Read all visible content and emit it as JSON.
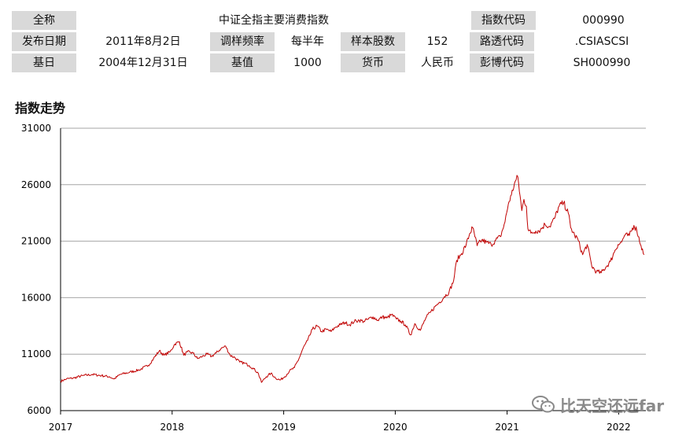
{
  "info": {
    "full_name_label": "全称",
    "full_name": "中证全指主要消费指数",
    "index_code_label": "指数代码",
    "index_code": "000990",
    "release_date_label": "发布日期",
    "release_date": "2011年8月2日",
    "rebalance_label": "调样频率",
    "rebalance": "每半年",
    "sample_count_label": "样本股数",
    "sample_count": "152",
    "reuters_code_label": "路透代码",
    "reuters_code": ".CSIASCSI",
    "base_date_label": "基日",
    "base_date": "2004年12月31日",
    "base_value_label": "基值",
    "base_value": "1000",
    "currency_label": "货币",
    "currency": "人民币",
    "bloomberg_code_label": "彭博代码",
    "bloomberg_code": "SH000990"
  },
  "section_title": "指数走势",
  "watermark": {
    "text": "比天空还远far",
    "icon": "wechat-icon"
  },
  "chart_data": {
    "type": "line",
    "title": "",
    "xlabel": "",
    "ylabel": "",
    "line_color": "#c00000",
    "grid": "horizontal",
    "ylim": [
      6000,
      31000
    ],
    "yticks": [
      6000,
      11000,
      16000,
      21000,
      26000,
      31000
    ],
    "xlim": [
      "2017-01-01",
      "2022-03-31"
    ],
    "xticks": [
      {
        "date": "2017-01-01",
        "label": "2017"
      },
      {
        "date": "2018-01-01",
        "label": "2018"
      },
      {
        "date": "2019-01-01",
        "label": "2019"
      },
      {
        "date": "2020-01-01",
        "label": "2020"
      },
      {
        "date": "2021-01-01",
        "label": "2021"
      },
      {
        "date": "2022-01-01",
        "label": "2022"
      }
    ],
    "series": [
      {
        "x": [
          "2017-01-01",
          "2017-01-20",
          "2017-02-15",
          "2017-03-15",
          "2017-04-15",
          "2017-05-15",
          "2017-06-10",
          "2017-06-25",
          "2017-07-15",
          "2017-08-15",
          "2017-09-15",
          "2017-10-15",
          "2017-11-01",
          "2017-11-20",
          "2017-12-05",
          "2017-12-25",
          "2018-01-10",
          "2018-01-25",
          "2018-02-08",
          "2018-02-20",
          "2018-03-10",
          "2018-03-25",
          "2018-04-10",
          "2018-04-25",
          "2018-05-10",
          "2018-05-25",
          "2018-06-10",
          "2018-06-25",
          "2018-07-10",
          "2018-07-25",
          "2018-08-10",
          "2018-08-25",
          "2018-09-10",
          "2018-09-25",
          "2018-10-10",
          "2018-10-20",
          "2018-11-05",
          "2018-11-20",
          "2018-12-05",
          "2018-12-20",
          "2019-01-04",
          "2019-01-20",
          "2019-02-05",
          "2019-02-20",
          "2019-03-05",
          "2019-03-20",
          "2019-04-05",
          "2019-04-20",
          "2019-05-05",
          "2019-05-20",
          "2019-06-05",
          "2019-06-20",
          "2019-07-05",
          "2019-07-20",
          "2019-08-05",
          "2019-08-20",
          "2019-09-05",
          "2019-09-20",
          "2019-10-05",
          "2019-10-20",
          "2019-11-05",
          "2019-11-20",
          "2019-12-05",
          "2019-12-20",
          "2020-01-05",
          "2020-01-20",
          "2020-02-03",
          "2020-02-20",
          "2020-03-05",
          "2020-03-23",
          "2020-04-10",
          "2020-04-25",
          "2020-05-10",
          "2020-05-25",
          "2020-06-10",
          "2020-06-25",
          "2020-07-10",
          "2020-07-20",
          "2020-08-05",
          "2020-08-20",
          "2020-09-01",
          "2020-09-10",
          "2020-09-25",
          "2020-10-10",
          "2020-10-25",
          "2020-11-10",
          "2020-11-25",
          "2020-12-10",
          "2020-12-25",
          "2021-01-05",
          "2021-01-15",
          "2021-01-25",
          "2021-02-05",
          "2021-02-18",
          "2021-02-25",
          "2021-03-05",
          "2021-03-10",
          "2021-03-20",
          "2021-04-05",
          "2021-04-20",
          "2021-05-05",
          "2021-05-20",
          "2021-06-05",
          "2021-06-20",
          "2021-07-05",
          "2021-07-20",
          "2021-07-28",
          "2021-08-10",
          "2021-08-20",
          "2021-09-05",
          "2021-09-20",
          "2021-10-05",
          "2021-10-20",
          "2021-11-05",
          "2021-11-20",
          "2021-12-05",
          "2021-12-20",
          "2021-12-30",
          "2022-01-10",
          "2022-01-20",
          "2022-02-05",
          "2022-02-20",
          "2022-03-01",
          "2022-03-15",
          "2022-03-25"
        ],
        "values": [
          8600,
          8800,
          8900,
          9100,
          9200,
          9100,
          9000,
          8800,
          9200,
          9400,
          9600,
          10000,
          10600,
          11300,
          10900,
          11200,
          11900,
          12100,
          10900,
          11200,
          11100,
          10600,
          10800,
          11000,
          10800,
          11100,
          11500,
          11700,
          10900,
          10700,
          10300,
          10200,
          10000,
          9700,
          9300,
          8500,
          9000,
          9300,
          8900,
          8700,
          9000,
          9500,
          9800,
          10600,
          11500,
          12200,
          13200,
          13500,
          13000,
          13200,
          13000,
          13400,
          13600,
          13800,
          13600,
          13900,
          14000,
          13900,
          14100,
          14300,
          14000,
          14300,
          14200,
          14500,
          14100,
          13900,
          13600,
          12700,
          13700,
          13100,
          14200,
          14700,
          15200,
          15600,
          16100,
          16500,
          17500,
          19300,
          19900,
          20700,
          21700,
          22200,
          20600,
          21100,
          20900,
          20700,
          21100,
          21400,
          22700,
          24300,
          25100,
          26100,
          26700,
          23700,
          24700,
          24100,
          22100,
          21700,
          21900,
          22000,
          22500,
          22300,
          23000,
          24100,
          24400,
          23500,
          22200,
          21500,
          21200,
          19800,
          20700,
          18800,
          18300,
          18200,
          18700,
          19200,
          20200,
          20700,
          20900,
          21500,
          21500,
          22400,
          22000,
          20600,
          19800
        ]
      }
    ]
  }
}
